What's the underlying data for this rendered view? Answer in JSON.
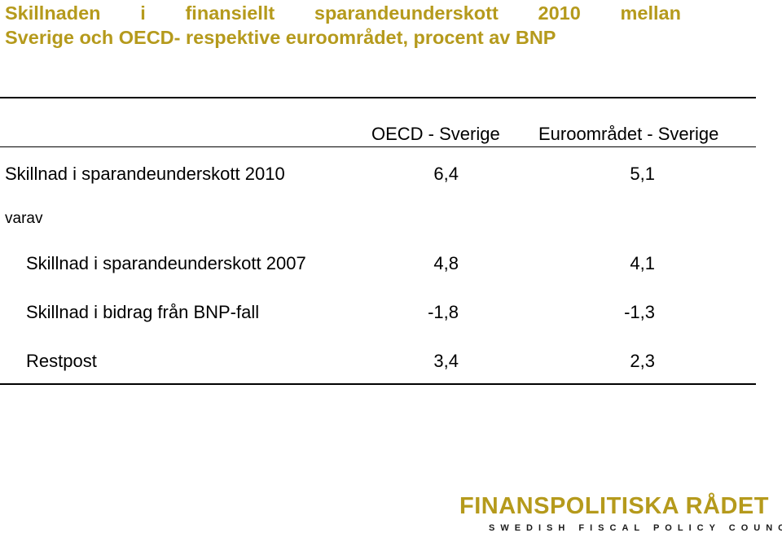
{
  "title": {
    "line1_words": [
      "Skillnaden",
      "i",
      "finansiellt",
      "sparandeunderskott",
      "2010",
      "mellan"
    ],
    "line2": "Sverige och OECD- respektive euroområdet, procent av BNP"
  },
  "table": {
    "columns": [
      "OECD - Sverige",
      "Euroområdet - Sverige"
    ],
    "rows": [
      {
        "label": "Skillnad i sparandeunderskott 2010",
        "values": [
          "6,4",
          "5,1"
        ]
      },
      {
        "label": "varav",
        "values": [
          "",
          ""
        ]
      },
      {
        "label": "Skillnad i sparandeunderskott 2007",
        "values": [
          "4,8",
          "4,1"
        ]
      },
      {
        "label": "Skillnad i bidrag från BNP-fall",
        "values": [
          "-1,8",
          "-1,3"
        ]
      },
      {
        "label": "Restpost",
        "values": [
          "3,4",
          "2,3"
        ]
      }
    ]
  },
  "logo": {
    "name": "FINANSPOLITISKA RÅDET",
    "subtitle": "SWEDISH FISCAL POLICY COUNCIL"
  }
}
